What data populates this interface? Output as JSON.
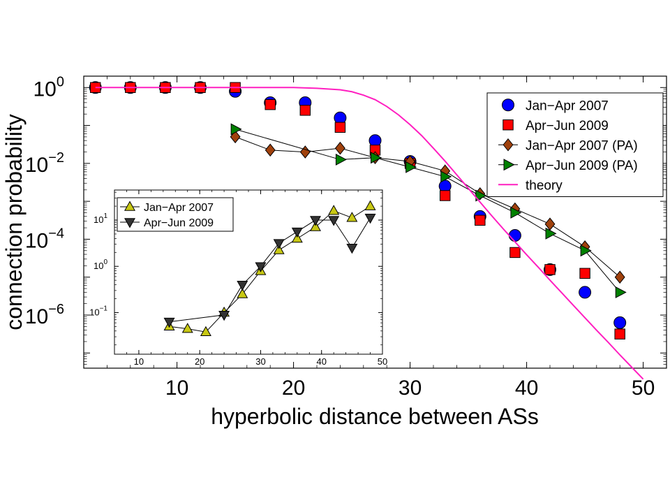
{
  "chart_data": [
    {
      "type": "scatter",
      "title": "",
      "xlabel": "hyperbolic distance between ASs",
      "ylabel": "connection probability",
      "xlim": [
        2,
        52
      ],
      "ylim_log10": [
        -7.4,
        0.3
      ],
      "y_scale": "log",
      "x_ticks": [
        10,
        20,
        30,
        40,
        50
      ],
      "y_ticks": [
        {
          "base": "10",
          "exp": "0",
          "value": 0
        },
        {
          "base": "10",
          "exp": "−2",
          "value": -2
        },
        {
          "base": "10",
          "exp": "−4",
          "value": -4
        },
        {
          "base": "10",
          "exp": "−6",
          "value": -6
        }
      ],
      "legend_position": "top-right",
      "series": [
        {
          "name": "Jan−Apr 2007",
          "marker": "circle",
          "color": "#0000ff",
          "line": false,
          "x": [
            3,
            6,
            9,
            12,
            15,
            18,
            21,
            24,
            27,
            30,
            33,
            36,
            39,
            42,
            45,
            48
          ],
          "log10_y": [
            0.0,
            0.0,
            0.0,
            0.0,
            -0.1,
            -0.4,
            -0.4,
            -0.8,
            -1.4,
            -1.95,
            -2.6,
            -3.4,
            -3.9,
            -4.8,
            -5.4,
            -6.2
          ]
        },
        {
          "name": "Apr−Jun 2009",
          "marker": "square",
          "color": "#ff0000",
          "line": false,
          "x": [
            3,
            6,
            9,
            12,
            15,
            18,
            21,
            24,
            27,
            30,
            33,
            36,
            39,
            42,
            45,
            48
          ],
          "log10_y": [
            0.0,
            0.0,
            0.0,
            0.0,
            0.0,
            -0.45,
            -0.6,
            -1.05,
            -1.65,
            -2.0,
            -2.85,
            -3.5,
            -4.35,
            -4.8,
            -4.9,
            -6.5
          ]
        },
        {
          "name": "Jan−Apr 2007 (PA)",
          "marker": "diamond",
          "color": "#a0410c",
          "line": true,
          "x": [
            15,
            18,
            21,
            24,
            27,
            30,
            33,
            36,
            39,
            42,
            45,
            48
          ],
          "log10_y": [
            -1.3,
            -1.65,
            -1.7,
            -1.6,
            -1.85,
            -1.95,
            -2.2,
            -2.8,
            -3.2,
            -3.6,
            -4.2,
            -5.0
          ]
        },
        {
          "name": "Apr−Jun 2009 (PA)",
          "marker": "triangle-right",
          "color": "#008000",
          "line": true,
          "x": [
            15,
            24,
            27,
            30,
            33,
            36,
            39,
            42,
            45,
            48
          ],
          "log10_y": [
            -1.1,
            -1.9,
            -1.85,
            -2.1,
            -2.35,
            -2.85,
            -3.3,
            -3.85,
            -4.3,
            -5.4
          ]
        },
        {
          "name": "theory",
          "marker": "none",
          "color": "#ff1fc0",
          "line": true,
          "x": [
            3,
            20,
            22,
            24,
            25,
            26,
            27,
            28,
            29,
            30,
            31,
            32,
            33,
            34,
            35,
            36,
            37,
            38,
            39,
            40,
            41,
            42,
            43,
            44,
            45,
            46,
            47,
            48,
            49,
            50
          ],
          "log10_y": [
            0.0,
            0.0,
            -0.02,
            -0.06,
            -0.11,
            -0.2,
            -0.32,
            -0.5,
            -0.72,
            -0.98,
            -1.27,
            -1.6,
            -1.94,
            -2.3,
            -2.66,
            -3.02,
            -3.38,
            -3.73,
            -4.07,
            -4.41,
            -4.74,
            -5.08,
            -5.41,
            -5.74,
            -6.07,
            -6.4,
            -6.72,
            -7.05,
            -7.37,
            -7.69
          ]
        }
      ]
    },
    {
      "type": "line",
      "title": "",
      "xlabel": "",
      "ylabel": "",
      "xlim": [
        6,
        50
      ],
      "ylim_log10": [
        -1.9,
        1.65
      ],
      "y_scale": "log",
      "x_ticks": [
        10,
        20,
        30,
        40,
        50
      ],
      "y_ticks": [
        {
          "base": "10",
          "exp": "−1",
          "value": -1
        },
        {
          "base": "10",
          "exp": "0",
          "value": 0
        },
        {
          "base": "10",
          "exp": "1",
          "value": 1
        }
      ],
      "legend_position": "top-left",
      "series": [
        {
          "name": "Jan−Apr 2007",
          "marker": "triangle-up",
          "color": "#c8c814",
          "x": [
            15,
            18,
            21,
            24,
            27,
            30,
            33,
            36,
            39,
            42,
            45,
            48
          ],
          "log10_y": [
            -1.3,
            -1.35,
            -1.42,
            -1.0,
            -0.6,
            -0.1,
            0.35,
            0.6,
            0.85,
            1.2,
            1.05,
            1.3
          ]
        },
        {
          "name": "Apr−Jun 2009",
          "marker": "triangle-down",
          "color": "#333333",
          "x": [
            15,
            24,
            27,
            30,
            33,
            36,
            39,
            42,
            45,
            48
          ],
          "log10_y": [
            -1.2,
            -1.05,
            -0.4,
            0.0,
            0.5,
            0.75,
            1.0,
            1.0,
            0.4,
            1.05
          ]
        }
      ]
    }
  ]
}
